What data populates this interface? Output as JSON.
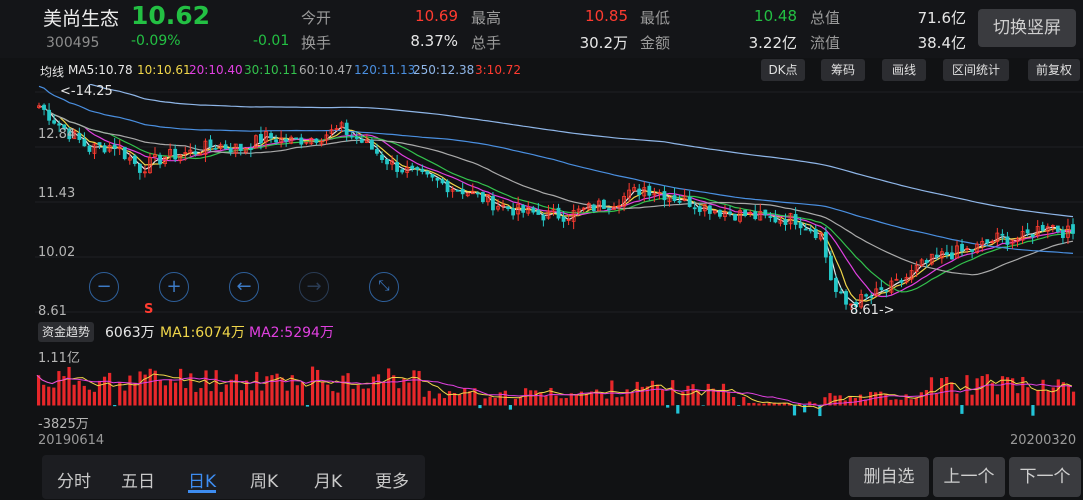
{
  "header": {
    "name": "美尚生态",
    "code": "300495",
    "price": "10.62",
    "change_pct": "-0.09%",
    "change": "-0.01",
    "quotes": [
      {
        "label": "今开",
        "value": "10.69",
        "color": "red"
      },
      {
        "label": "最高",
        "value": "10.85",
        "color": "red"
      },
      {
        "label": "最低",
        "value": "10.48",
        "color": "green"
      },
      {
        "label": "总值",
        "value": "71.6亿",
        "color": "white"
      },
      {
        "label": "换手",
        "value": "8.37%",
        "color": "white"
      },
      {
        "label": "总手",
        "value": "30.2万",
        "color": "white"
      },
      {
        "label": "金额",
        "value": "3.22亿",
        "color": "white"
      },
      {
        "label": "流值",
        "value": "38.4亿",
        "color": "white"
      }
    ],
    "switch_label": "切换竖屏"
  },
  "ma_row": {
    "label": "均线",
    "items": [
      {
        "text": "MA5:10.78",
        "color": "#e6e6e6"
      },
      {
        "text": "10:10.61",
        "color": "#f0d64a"
      },
      {
        "text": "20:10.40",
        "color": "#e040e0"
      },
      {
        "text": "30:10.11",
        "color": "#33c24d"
      },
      {
        "text": "60:10.47",
        "color": "#aaaaaa"
      },
      {
        "text": "120:11.13",
        "color": "#4a8fe0"
      },
      {
        "text": "250:12.38",
        "color": "#8fb6e8"
      },
      {
        "text": "3:10.72",
        "color": "#ff3b30"
      }
    ]
  },
  "toolbar": {
    "buttons": [
      "DK点",
      "筹码",
      "画线",
      "区间统计",
      "前复权"
    ]
  },
  "chart_data": {
    "type": "candlestick",
    "y_ticks": [
      "14.25",
      "12.84",
      "11.43",
      "10.02",
      "8.61"
    ],
    "ylim": [
      8.61,
      14.25
    ],
    "high_annotation": "<-14.25",
    "low_annotation": "8.61->",
    "signal_marker": "S",
    "ma_lines": [
      {
        "name": "MA5",
        "color": "#e6e6e6"
      },
      {
        "name": "MA10",
        "color": "#f0d64a"
      },
      {
        "name": "MA20",
        "color": "#e040e0"
      },
      {
        "name": "MA30",
        "color": "#33c24d"
      },
      {
        "name": "MA60",
        "color": "#aaaaaa"
      },
      {
        "name": "MA120",
        "color": "#4a8fe0"
      },
      {
        "name": "MA250",
        "color": "#8fb6e8"
      }
    ],
    "price_path": [
      [
        0,
        13.9
      ],
      [
        10,
        13.3
      ],
      [
        20,
        12.8
      ],
      [
        30,
        12.9
      ],
      [
        40,
        12.3
      ],
      [
        50,
        12.6
      ],
      [
        60,
        12.7
      ],
      [
        70,
        12.9
      ],
      [
        80,
        12.8
      ],
      [
        90,
        13.1
      ],
      [
        100,
        13.0
      ],
      [
        110,
        13.1
      ],
      [
        120,
        13.3
      ],
      [
        130,
        12.9
      ],
      [
        140,
        12.4
      ],
      [
        150,
        12.1
      ],
      [
        160,
        11.9
      ],
      [
        170,
        11.7
      ],
      [
        180,
        11.4
      ],
      [
        190,
        11.2
      ],
      [
        200,
        11.1
      ],
      [
        210,
        11.1
      ],
      [
        220,
        11.3
      ],
      [
        230,
        11.5
      ],
      [
        240,
        11.8
      ],
      [
        250,
        11.6
      ],
      [
        260,
        11.4
      ],
      [
        270,
        11.2
      ],
      [
        280,
        11.1
      ],
      [
        290,
        11.0
      ],
      [
        300,
        11.0
      ],
      [
        310,
        10.6
      ],
      [
        315,
        9.2
      ],
      [
        320,
        8.8
      ],
      [
        330,
        9.0
      ],
      [
        340,
        9.3
      ],
      [
        350,
        9.8
      ],
      [
        360,
        10.1
      ],
      [
        370,
        10.2
      ],
      [
        380,
        10.5
      ],
      [
        390,
        10.5
      ],
      [
        400,
        10.9
      ],
      [
        405,
        10.7
      ],
      [
        410,
        10.62
      ]
    ],
    "capital_flow": {
      "label": "资金趋势",
      "value": "6063万",
      "ma1": "MA1:6074万",
      "ma2": "MA2:5294万",
      "y_max": "1.11亿",
      "y_min": "-3825万"
    },
    "x_start": "20190614",
    "x_end": "20200320"
  },
  "tabs": [
    "分时",
    "五日",
    "日K",
    "周K",
    "月K",
    "更多"
  ],
  "actions": [
    "删自选",
    "上一个",
    "下一个"
  ]
}
